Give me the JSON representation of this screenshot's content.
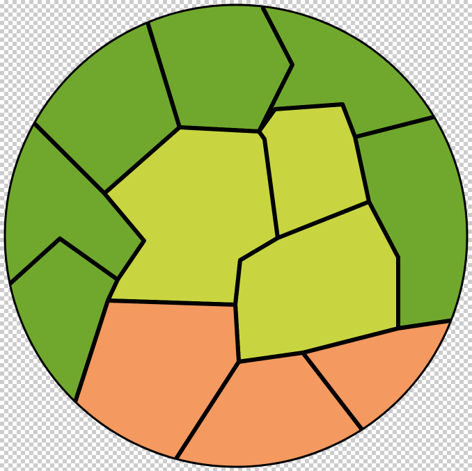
{
  "colors": {
    "dark_green": "#70A82E",
    "light_green": "#C8D540",
    "orange": "#F4995F",
    "outline": "#000000",
    "checker": "#CCCCCC",
    "background": "#FFFFFF"
  },
  "regions": [
    {
      "name": "region-top-left",
      "fill": "dark_green"
    },
    {
      "name": "region-top-middle",
      "fill": "dark_green"
    },
    {
      "name": "region-top-right",
      "fill": "dark_green"
    },
    {
      "name": "region-left-upper",
      "fill": "dark_green"
    },
    {
      "name": "region-left-lower",
      "fill": "dark_green"
    },
    {
      "name": "region-right",
      "fill": "dark_green"
    },
    {
      "name": "region-center-left",
      "fill": "light_green"
    },
    {
      "name": "region-center-top",
      "fill": "light_green"
    },
    {
      "name": "region-center-right",
      "fill": "light_green"
    },
    {
      "name": "region-bottom-left",
      "fill": "orange"
    },
    {
      "name": "region-bottom-middle",
      "fill": "orange"
    },
    {
      "name": "region-bottom-right",
      "fill": "orange"
    }
  ]
}
